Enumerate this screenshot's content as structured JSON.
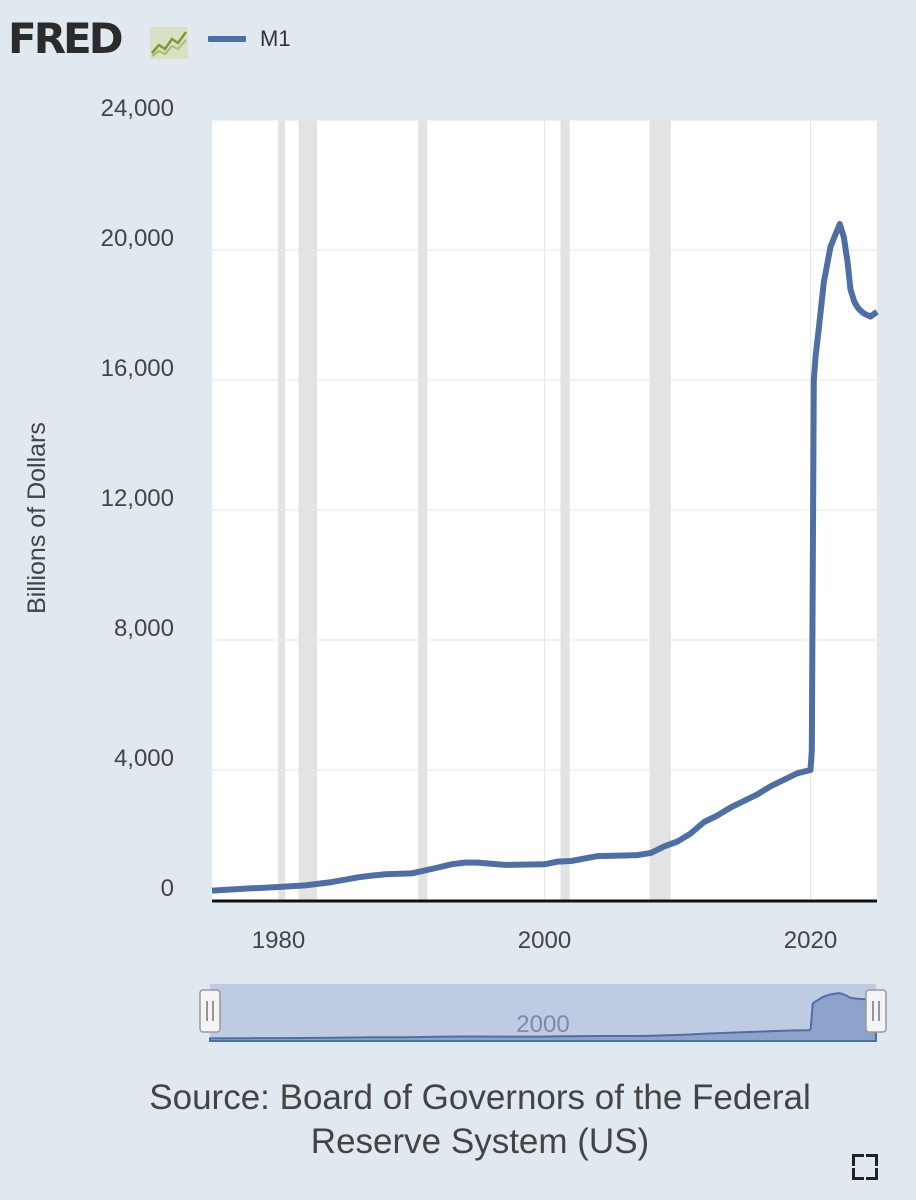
{
  "header": {
    "logo_text": "FRED",
    "logo_icon": "line-graph-icon"
  },
  "source_text_line1": "Source: Board of Governors of the Federal",
  "source_text_line2": "Reserve System (US)",
  "fullscreen_icon": "fullscreen-icon",
  "colors": {
    "series": "#4f6fa3",
    "background": "#e1e9f0",
    "plot_bg": "#ffffff",
    "recession": "#e3e3e3",
    "navigator_fill": "#bfcbe3"
  },
  "chart_data": {
    "type": "line",
    "title": "",
    "xlabel": "",
    "ylabel": "Billions of Dollars",
    "xlim": [
      1975,
      2025
    ],
    "ylim": [
      0,
      24000
    ],
    "yticks": [
      "0",
      "4,000",
      "8,000",
      "12,000",
      "16,000",
      "20,000",
      "24,000"
    ],
    "xticks": [
      "1980",
      "2000",
      "2020"
    ],
    "grid": true,
    "legend": "top-left",
    "recessions": [
      [
        1980.0,
        1980.5
      ],
      [
        1981.5,
        1982.9
      ],
      [
        1990.5,
        1991.2
      ],
      [
        2001.2,
        2001.9
      ],
      [
        2007.9,
        2009.5
      ]
    ],
    "navigator_label": "2000",
    "series": [
      {
        "name": "M1",
        "x": [
          1975,
          1978,
          1980,
          1982,
          1984,
          1986,
          1987,
          1988,
          1990,
          1992,
          1993,
          1994,
          1995,
          1997,
          2000,
          2001,
          2002,
          2004,
          2006,
          2007,
          2008,
          2009,
          2010,
          2011,
          2012,
          2013,
          2014,
          2015,
          2016,
          2017,
          2018,
          2019,
          2020.0,
          2020.1,
          2020.25,
          2020.4,
          2020.6,
          2021.0,
          2021.5,
          2022.0,
          2022.2,
          2022.5,
          2022.8,
          2023.0,
          2023.3,
          2023.6,
          2024.0,
          2024.5,
          2025
        ],
        "values": [
          290,
          360,
          400,
          450,
          550,
          700,
          750,
          790,
          820,
          1000,
          1100,
          1150,
          1150,
          1080,
          1100,
          1180,
          1200,
          1350,
          1370,
          1380,
          1450,
          1650,
          1800,
          2050,
          2400,
          2600,
          2850,
          3050,
          3250,
          3500,
          3700,
          3900,
          4000,
          4600,
          16000,
          16800,
          17500,
          19000,
          20100,
          20600,
          20800,
          20400,
          19600,
          18800,
          18400,
          18200,
          18050,
          17950,
          18100
        ]
      }
    ]
  }
}
